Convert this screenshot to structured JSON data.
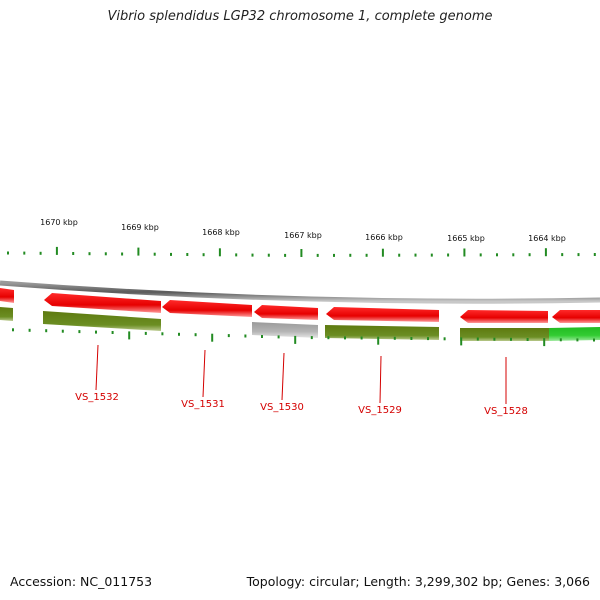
{
  "title": "Vibrio splendidus LGP32 chromosome 1, complete genome",
  "footer": {
    "accession": "Accession: NC_011753",
    "topology": "Topology: circular; Length: 3,299,302 bp; Genes: 3,066"
  },
  "colors": {
    "cds_forward": "#e60000",
    "cds_reverse_strand": "#6b8e23",
    "rna_gray": "#b0b0b0",
    "highlight_green": "#33cc33",
    "backbone": "#7f7f7f",
    "tick": "#228b22",
    "label": "#d40000"
  },
  "scale": {
    "labels": [
      "1670 kbp",
      "1669 kbp",
      "1668 kbp",
      "1667 kbp",
      "1666 kbp",
      "1665 kbp",
      "1664 kbp"
    ]
  },
  "genes": [
    {
      "label": "VS_1532"
    },
    {
      "label": "VS_1531"
    },
    {
      "label": "VS_1530"
    },
    {
      "label": "VS_1529"
    },
    {
      "label": "VS_1528"
    }
  ]
}
